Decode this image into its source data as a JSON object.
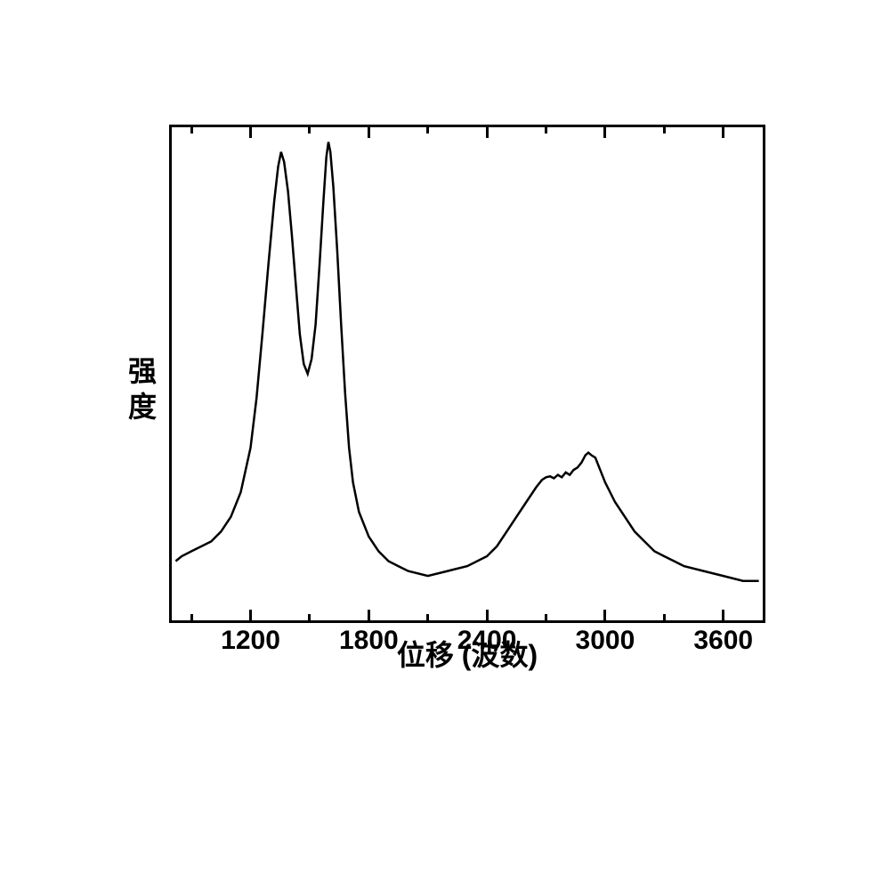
{
  "chart": {
    "type": "line",
    "x_label": "位移 (波数)",
    "y_label": "强度",
    "label_fontsize": 32,
    "tick_fontsize": 30,
    "x_ticks": [
      1200,
      1800,
      2400,
      3000,
      3600
    ],
    "xlim": [
      800,
      3800
    ],
    "ylim": [
      0,
      100
    ],
    "border_color": "#000000",
    "border_width": 3,
    "background_color": "#ffffff",
    "line_color": "#000000",
    "line_width": 2.5,
    "tick_length_major": 12,
    "tick_length_minor": 7,
    "data_points": [
      [
        820,
        12
      ],
      [
        850,
        13
      ],
      [
        900,
        14
      ],
      [
        950,
        15
      ],
      [
        1000,
        16
      ],
      [
        1050,
        18
      ],
      [
        1100,
        21
      ],
      [
        1150,
        26
      ],
      [
        1200,
        35
      ],
      [
        1230,
        45
      ],
      [
        1260,
        58
      ],
      [
        1290,
        72
      ],
      [
        1320,
        85
      ],
      [
        1340,
        92
      ],
      [
        1355,
        95
      ],
      [
        1370,
        93
      ],
      [
        1390,
        87
      ],
      [
        1410,
        78
      ],
      [
        1430,
        68
      ],
      [
        1450,
        58
      ],
      [
        1470,
        52
      ],
      [
        1490,
        50
      ],
      [
        1510,
        53
      ],
      [
        1530,
        60
      ],
      [
        1550,
        72
      ],
      [
        1570,
        85
      ],
      [
        1585,
        94
      ],
      [
        1595,
        97
      ],
      [
        1605,
        95
      ],
      [
        1620,
        88
      ],
      [
        1640,
        75
      ],
      [
        1660,
        60
      ],
      [
        1680,
        46
      ],
      [
        1700,
        35
      ],
      [
        1720,
        28
      ],
      [
        1750,
        22
      ],
      [
        1800,
        17
      ],
      [
        1850,
        14
      ],
      [
        1900,
        12
      ],
      [
        1950,
        11
      ],
      [
        2000,
        10
      ],
      [
        2100,
        9
      ],
      [
        2200,
        10
      ],
      [
        2300,
        11
      ],
      [
        2400,
        13
      ],
      [
        2450,
        15
      ],
      [
        2500,
        18
      ],
      [
        2550,
        21
      ],
      [
        2600,
        24
      ],
      [
        2650,
        27
      ],
      [
        2680,
        28.5
      ],
      [
        2700,
        29
      ],
      [
        2720,
        29.2
      ],
      [
        2740,
        28.8
      ],
      [
        2760,
        29.5
      ],
      [
        2780,
        29
      ],
      [
        2800,
        30
      ],
      [
        2820,
        29.5
      ],
      [
        2840,
        30.5
      ],
      [
        2860,
        31
      ],
      [
        2880,
        32
      ],
      [
        2900,
        33.5
      ],
      [
        2915,
        34
      ],
      [
        2930,
        33.5
      ],
      [
        2950,
        33
      ],
      [
        2970,
        31
      ],
      [
        3000,
        28
      ],
      [
        3050,
        24
      ],
      [
        3100,
        21
      ],
      [
        3150,
        18
      ],
      [
        3200,
        16
      ],
      [
        3250,
        14
      ],
      [
        3300,
        13
      ],
      [
        3350,
        12
      ],
      [
        3400,
        11
      ],
      [
        3500,
        10
      ],
      [
        3600,
        9
      ],
      [
        3700,
        8
      ],
      [
        3780,
        8
      ]
    ]
  }
}
